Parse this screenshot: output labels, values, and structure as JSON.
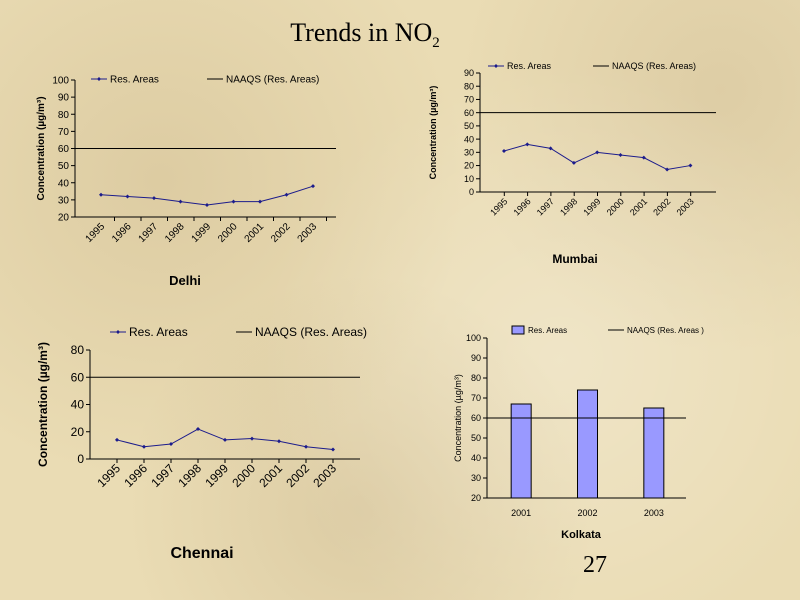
{
  "slide": {
    "title_main": "Trends in NO",
    "title_sub": "2",
    "page_number": "27"
  },
  "colors": {
    "line_series": "#1c1c8c",
    "limit_line": "#000000",
    "bar_fill": "#9999ff",
    "bar_stroke": "#000000"
  },
  "chart_data": [
    {
      "type": "line",
      "title": "Delhi",
      "xlabel": "",
      "ylabel": "Concentration (µg/m³)",
      "categories": [
        "1995",
        "1996",
        "1997",
        "1998",
        "1999",
        "2000",
        "2001",
        "2002",
        "2003"
      ],
      "series": [
        {
          "name": "Res. Areas",
          "values": [
            33,
            32,
            31,
            29,
            27,
            29,
            29,
            33,
            38
          ]
        },
        {
          "name": "NAAQS (Res. Areas)",
          "values": [
            60,
            60,
            60,
            60,
            60,
            60,
            60,
            60,
            60
          ]
        }
      ],
      "ylim": [
        20,
        100
      ],
      "yticks": [
        20,
        30,
        40,
        50,
        60,
        70,
        80,
        90,
        100
      ],
      "legend": "top",
      "grid": false
    },
    {
      "type": "line",
      "title": "Mumbai",
      "xlabel": "",
      "ylabel": "Concentration (µg/m³)",
      "categories": [
        "1995",
        "1996",
        "1997",
        "1998",
        "1999",
        "2000",
        "2001",
        "2002",
        "2003"
      ],
      "series": [
        {
          "name": "Res. Areas",
          "values": [
            31,
            36,
            33,
            22,
            30,
            28,
            26,
            17,
            20
          ]
        },
        {
          "name": "NAAQS (Res. Areas)",
          "values": [
            60,
            60,
            60,
            60,
            60,
            60,
            60,
            60,
            60
          ]
        }
      ],
      "ylim": [
        0,
        90
      ],
      "yticks": [
        0,
        10,
        20,
        30,
        40,
        50,
        60,
        70,
        80,
        90
      ],
      "legend": "top",
      "grid": false
    },
    {
      "type": "line",
      "title": "Chennai",
      "xlabel": "",
      "ylabel": "Concentration (µg/m³)",
      "categories": [
        "1995",
        "1996",
        "1997",
        "1998",
        "1999",
        "2000",
        "2001",
        "2002",
        "2003"
      ],
      "series": [
        {
          "name": "Res. Areas",
          "values": [
            14,
            9,
            11,
            22,
            14,
            15,
            13,
            9,
            7
          ]
        },
        {
          "name": "NAAQS (Res. Areas)",
          "values": [
            60,
            60,
            60,
            60,
            60,
            60,
            60,
            60,
            60
          ]
        }
      ],
      "ylim": [
        0,
        80
      ],
      "yticks": [
        0,
        20,
        40,
        60,
        80
      ],
      "legend": "top",
      "grid": false
    },
    {
      "type": "bar",
      "title": "Kolkata",
      "xlabel": "",
      "ylabel": "Concentration (µg/m³)",
      "categories": [
        "2001",
        "2002",
        "2003"
      ],
      "series": [
        {
          "name": "Res. Areas",
          "values": [
            67,
            74,
            65
          ]
        },
        {
          "name": "NAAQS (Res. Areas )",
          "values": [
            60,
            60,
            60
          ]
        }
      ],
      "ylim": [
        20,
        100
      ],
      "yticks": [
        20,
        30,
        40,
        50,
        60,
        70,
        80,
        90,
        100
      ],
      "legend": "top",
      "grid": false
    }
  ]
}
